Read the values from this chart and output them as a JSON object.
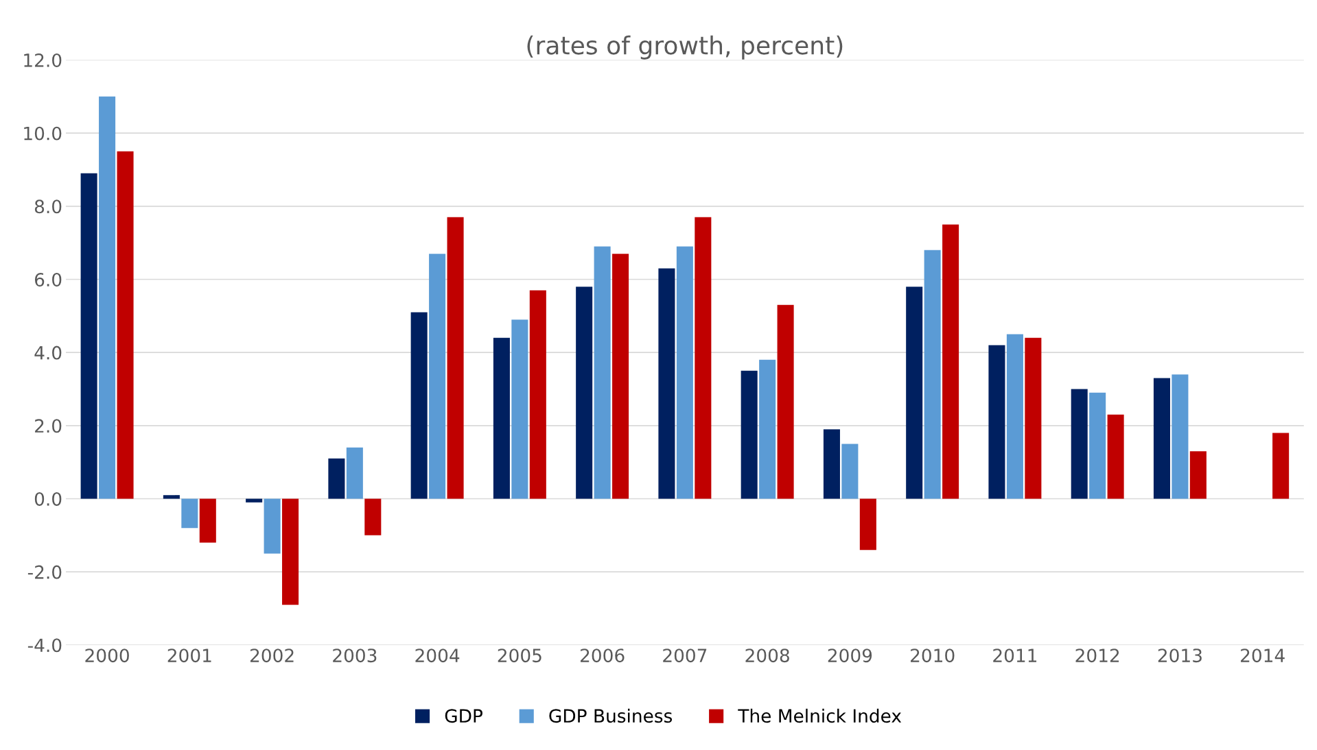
{
  "chart_data": {
    "type": "bar",
    "title": "(rates of growth, percent)",
    "categories": [
      "2000",
      "2001",
      "2002",
      "2003",
      "2004",
      "2005",
      "2006",
      "2007",
      "2008",
      "2009",
      "2010",
      "2011",
      "2012",
      "2013",
      "2014"
    ],
    "series": [
      {
        "name": "GDP",
        "color": "#002060",
        "values": [
          8.9,
          0.1,
          -0.1,
          1.1,
          5.1,
          4.4,
          5.8,
          6.3,
          3.5,
          1.9,
          5.8,
          4.2,
          3.0,
          3.3,
          null
        ]
      },
      {
        "name": "GDP Business",
        "color": "#5b9bd5",
        "values": [
          11.0,
          -0.8,
          -1.5,
          1.4,
          6.7,
          4.9,
          6.9,
          6.9,
          3.8,
          1.5,
          6.8,
          4.5,
          2.9,
          3.4,
          null
        ]
      },
      {
        "name": "The Melnick Index",
        "color": "#c00000",
        "values": [
          9.5,
          -1.2,
          -2.9,
          -1.0,
          7.7,
          5.7,
          6.7,
          7.7,
          5.3,
          -1.4,
          7.5,
          4.4,
          2.3,
          1.3,
          1.8
        ]
      }
    ],
    "ylim": [
      -4,
      12
    ],
    "yticks": [
      {
        "value": -4,
        "label": "-4.0"
      },
      {
        "value": -2,
        "label": "-2.0"
      },
      {
        "value": 0,
        "label": "0.0"
      },
      {
        "value": 2,
        "label": "2.0"
      },
      {
        "value": 4,
        "label": "4.0"
      },
      {
        "value": 6,
        "label": "6.0"
      },
      {
        "value": 8,
        "label": "8.0"
      },
      {
        "value": 10,
        "label": "10.0"
      },
      {
        "value": 12,
        "label": "12.0"
      }
    ],
    "grid": "y",
    "legend": "bottom"
  }
}
